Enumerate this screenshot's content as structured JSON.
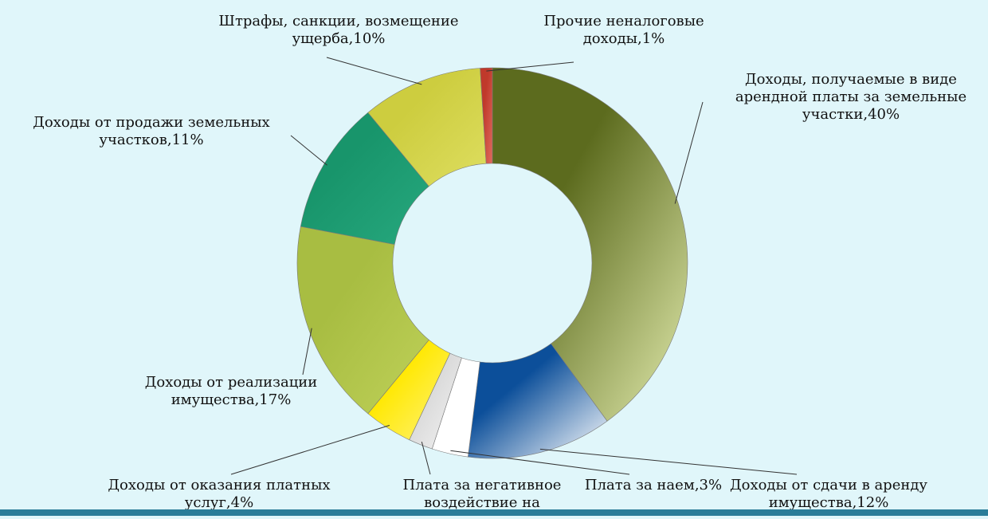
{
  "chart_data": {
    "type": "pie",
    "exploded": true,
    "title": "",
    "slices": [
      {
        "label_lines": [
          "Доходы, получаемые в виде",
          "арендной платы за земельные",
          "участки,40%"
        ],
        "value": 40,
        "color": "#5c6b1e",
        "color_light": "#e3ecae"
      },
      {
        "label_lines": [
          "Доходы от сдачи в аренду",
          "имущества,12%"
        ],
        "value": 12,
        "color": "#0c4f9a",
        "color_light": "#ffffff"
      },
      {
        "label_lines": [
          "Плата за наем,3%"
        ],
        "value": 3,
        "color": "#ffffff",
        "color_light": "#ffffff"
      },
      {
        "label_lines": [
          "Плата за негативное",
          "воздействие на"
        ],
        "value": 2,
        "color": "#d8d8d8",
        "color_light": "#f4f4f4"
      },
      {
        "label_lines": [
          "Доходы от оказания платных",
          "услуг,4%"
        ],
        "value": 4,
        "color": "#ffe800",
        "color_light": "#fff37a"
      },
      {
        "label_lines": [
          "Доходы от реализации",
          "имущества,17%"
        ],
        "value": 17,
        "color": "#a8bd42",
        "color_light": "#bfd159"
      },
      {
        "label_lines": [
          "Доходы от продажи земельных",
          "участков,11%"
        ],
        "value": 11,
        "color": "#18956b",
        "color_light": "#27a87e"
      },
      {
        "label_lines": [
          "Штрафы, санкции, возмещение",
          "ущерба,10%"
        ],
        "value": 10,
        "color": "#cdcd3f",
        "color_light": "#dede60"
      },
      {
        "label_lines": [
          "Прочие неналоговые",
          "доходы,1%"
        ],
        "value": 1,
        "color": "#c0392b",
        "color_light": "#e06a5e"
      }
    ],
    "legend": "none"
  }
}
